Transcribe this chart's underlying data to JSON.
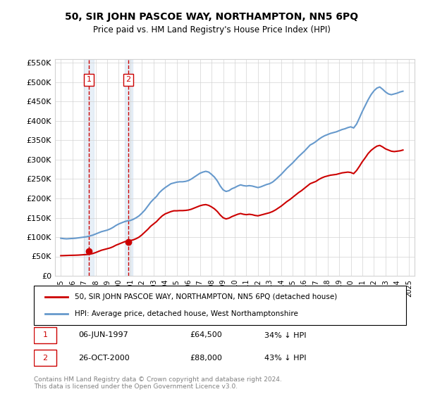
{
  "title": "50, SIR JOHN PASCOE WAY, NORTHAMPTON, NN5 6PQ",
  "subtitle": "Price paid vs. HM Land Registry's House Price Index (HPI)",
  "legend_line1": "50, SIR JOHN PASCOE WAY, NORTHAMPTON, NN5 6PQ (detached house)",
  "legend_line2": "HPI: Average price, detached house, West Northamptonshire",
  "footer": "Contains HM Land Registry data © Crown copyright and database right 2024.\nThis data is licensed under the Open Government Licence v3.0.",
  "sale1_date": "06-JUN-1997",
  "sale1_price": 64500,
  "sale1_label": "34% ↓ HPI",
  "sale2_date": "26-OCT-2000",
  "sale2_price": 88000,
  "sale2_label": "43% ↓ HPI",
  "hpi_color": "#6699cc",
  "price_color": "#cc0000",
  "sale_marker_color": "#cc0000",
  "vline_color": "#cc0000",
  "shade_color": "#d0e0f0",
  "ylim": [
    0,
    560000
  ],
  "yticks": [
    0,
    50000,
    100000,
    150000,
    200000,
    250000,
    300000,
    350000,
    400000,
    450000,
    500000,
    550000
  ],
  "xlim_start": 1994.5,
  "xlim_end": 2025.5,
  "hpi_data": {
    "years": [
      1995.0,
      1995.25,
      1995.5,
      1995.75,
      1996.0,
      1996.25,
      1996.5,
      1996.75,
      1997.0,
      1997.25,
      1997.5,
      1997.75,
      1998.0,
      1998.25,
      1998.5,
      1998.75,
      1999.0,
      1999.25,
      1999.5,
      1999.75,
      2000.0,
      2000.25,
      2000.5,
      2000.75,
      2001.0,
      2001.25,
      2001.5,
      2001.75,
      2002.0,
      2002.25,
      2002.5,
      2002.75,
      2003.0,
      2003.25,
      2003.5,
      2003.75,
      2004.0,
      2004.25,
      2004.5,
      2004.75,
      2005.0,
      2005.25,
      2005.5,
      2005.75,
      2006.0,
      2006.25,
      2006.5,
      2006.75,
      2007.0,
      2007.25,
      2007.5,
      2007.75,
      2008.0,
      2008.25,
      2008.5,
      2008.75,
      2009.0,
      2009.25,
      2009.5,
      2009.75,
      2010.0,
      2010.25,
      2010.5,
      2010.75,
      2011.0,
      2011.25,
      2011.5,
      2011.75,
      2012.0,
      2012.25,
      2012.5,
      2012.75,
      2013.0,
      2013.25,
      2013.5,
      2013.75,
      2014.0,
      2014.25,
      2014.5,
      2014.75,
      2015.0,
      2015.25,
      2015.5,
      2015.75,
      2016.0,
      2016.25,
      2016.5,
      2016.75,
      2017.0,
      2017.25,
      2017.5,
      2017.75,
      2018.0,
      2018.25,
      2018.5,
      2018.75,
      2019.0,
      2019.25,
      2019.5,
      2019.75,
      2020.0,
      2020.25,
      2020.5,
      2020.75,
      2021.0,
      2021.25,
      2021.5,
      2021.75,
      2022.0,
      2022.25,
      2022.5,
      2022.75,
      2023.0,
      2023.25,
      2023.5,
      2023.75,
      2024.0,
      2024.25,
      2024.5
    ],
    "values": [
      97000,
      96000,
      95500,
      96000,
      96500,
      97000,
      98000,
      99000,
      100000,
      101000,
      103000,
      105000,
      108000,
      111000,
      114000,
      116000,
      118000,
      121000,
      125000,
      130000,
      134000,
      137000,
      140000,
      142000,
      143000,
      146000,
      150000,
      155000,
      162000,
      170000,
      180000,
      190000,
      198000,
      205000,
      215000,
      222000,
      228000,
      233000,
      238000,
      240000,
      242000,
      243000,
      243000,
      244000,
      246000,
      250000,
      255000,
      260000,
      265000,
      268000,
      270000,
      268000,
      262000,
      255000,
      245000,
      232000,
      222000,
      218000,
      220000,
      225000,
      228000,
      232000,
      235000,
      233000,
      232000,
      233000,
      232000,
      230000,
      228000,
      230000,
      233000,
      236000,
      238000,
      242000,
      248000,
      255000,
      262000,
      270000,
      278000,
      285000,
      292000,
      300000,
      308000,
      315000,
      322000,
      330000,
      338000,
      342000,
      347000,
      353000,
      358000,
      362000,
      365000,
      368000,
      370000,
      372000,
      375000,
      378000,
      380000,
      383000,
      385000,
      382000,
      392000,
      408000,
      425000,
      440000,
      455000,
      468000,
      478000,
      485000,
      488000,
      482000,
      475000,
      470000,
      468000,
      470000,
      472000,
      475000,
      477000
    ]
  },
  "price_data": {
    "years": [
      1995.0,
      1995.25,
      1995.5,
      1995.75,
      1996.0,
      1996.25,
      1996.5,
      1996.75,
      1997.0,
      1997.25,
      1997.5,
      1997.75,
      1998.0,
      1998.25,
      1998.5,
      1998.75,
      1999.0,
      1999.25,
      1999.5,
      1999.75,
      2000.0,
      2000.25,
      2000.5,
      2000.75,
      2001.0,
      2001.25,
      2001.5,
      2001.75,
      2002.0,
      2002.25,
      2002.5,
      2002.75,
      2003.0,
      2003.25,
      2003.5,
      2003.75,
      2004.0,
      2004.25,
      2004.5,
      2004.75,
      2005.0,
      2005.25,
      2005.5,
      2005.75,
      2006.0,
      2006.25,
      2006.5,
      2006.75,
      2007.0,
      2007.25,
      2007.5,
      2007.75,
      2008.0,
      2008.25,
      2008.5,
      2008.75,
      2009.0,
      2009.25,
      2009.5,
      2009.75,
      2010.0,
      2010.25,
      2010.5,
      2010.75,
      2011.0,
      2011.25,
      2011.5,
      2011.75,
      2012.0,
      2012.25,
      2012.5,
      2012.75,
      2013.0,
      2013.25,
      2013.5,
      2013.75,
      2014.0,
      2014.25,
      2014.5,
      2014.75,
      2015.0,
      2015.25,
      2015.5,
      2015.75,
      2016.0,
      2016.25,
      2016.5,
      2016.75,
      2017.0,
      2017.25,
      2017.5,
      2017.75,
      2018.0,
      2018.25,
      2018.5,
      2018.75,
      2019.0,
      2019.25,
      2019.5,
      2019.75,
      2020.0,
      2020.25,
      2020.5,
      2020.75,
      2021.0,
      2021.25,
      2021.5,
      2021.75,
      2022.0,
      2022.25,
      2022.5,
      2022.75,
      2023.0,
      2023.25,
      2023.5,
      2023.75,
      2024.0,
      2024.25,
      2024.5
    ],
    "values": [
      52000,
      52200,
      52500,
      52800,
      53000,
      53200,
      53500,
      54000,
      54500,
      55000,
      56000,
      57500,
      60000,
      63000,
      66000,
      68000,
      70000,
      72000,
      75000,
      79000,
      82000,
      85000,
      88000,
      90000,
      91000,
      93000,
      96000,
      100000,
      106000,
      113000,
      120000,
      128000,
      134000,
      140000,
      148000,
      155000,
      160000,
      163000,
      166000,
      168000,
      168000,
      168500,
      168500,
      169000,
      170000,
      172000,
      175000,
      178000,
      181000,
      183000,
      184000,
      182000,
      178000,
      173000,
      166000,
      157000,
      150000,
      147000,
      149000,
      153000,
      156000,
      159000,
      161000,
      159000,
      158000,
      159000,
      158000,
      156000,
      155000,
      157000,
      159000,
      161000,
      163000,
      166000,
      170000,
      175000,
      180000,
      186000,
      192000,
      197000,
      203000,
      209000,
      215000,
      220000,
      226000,
      232000,
      238000,
      241000,
      244000,
      249000,
      253000,
      256000,
      258000,
      260000,
      261000,
      262000,
      264000,
      266000,
      267000,
      268000,
      267000,
      264000,
      272000,
      283000,
      295000,
      305000,
      316000,
      324000,
      330000,
      335000,
      337000,
      333000,
      328000,
      325000,
      322000,
      321000,
      322000,
      323000,
      325000
    ]
  },
  "sale1_year": 1997.42,
  "sale2_year": 2000.82,
  "sale1_shade_start": 1997.0,
  "sale1_shade_end": 1997.84,
  "sale2_shade_start": 2000.5,
  "sale2_shade_end": 2001.16
}
